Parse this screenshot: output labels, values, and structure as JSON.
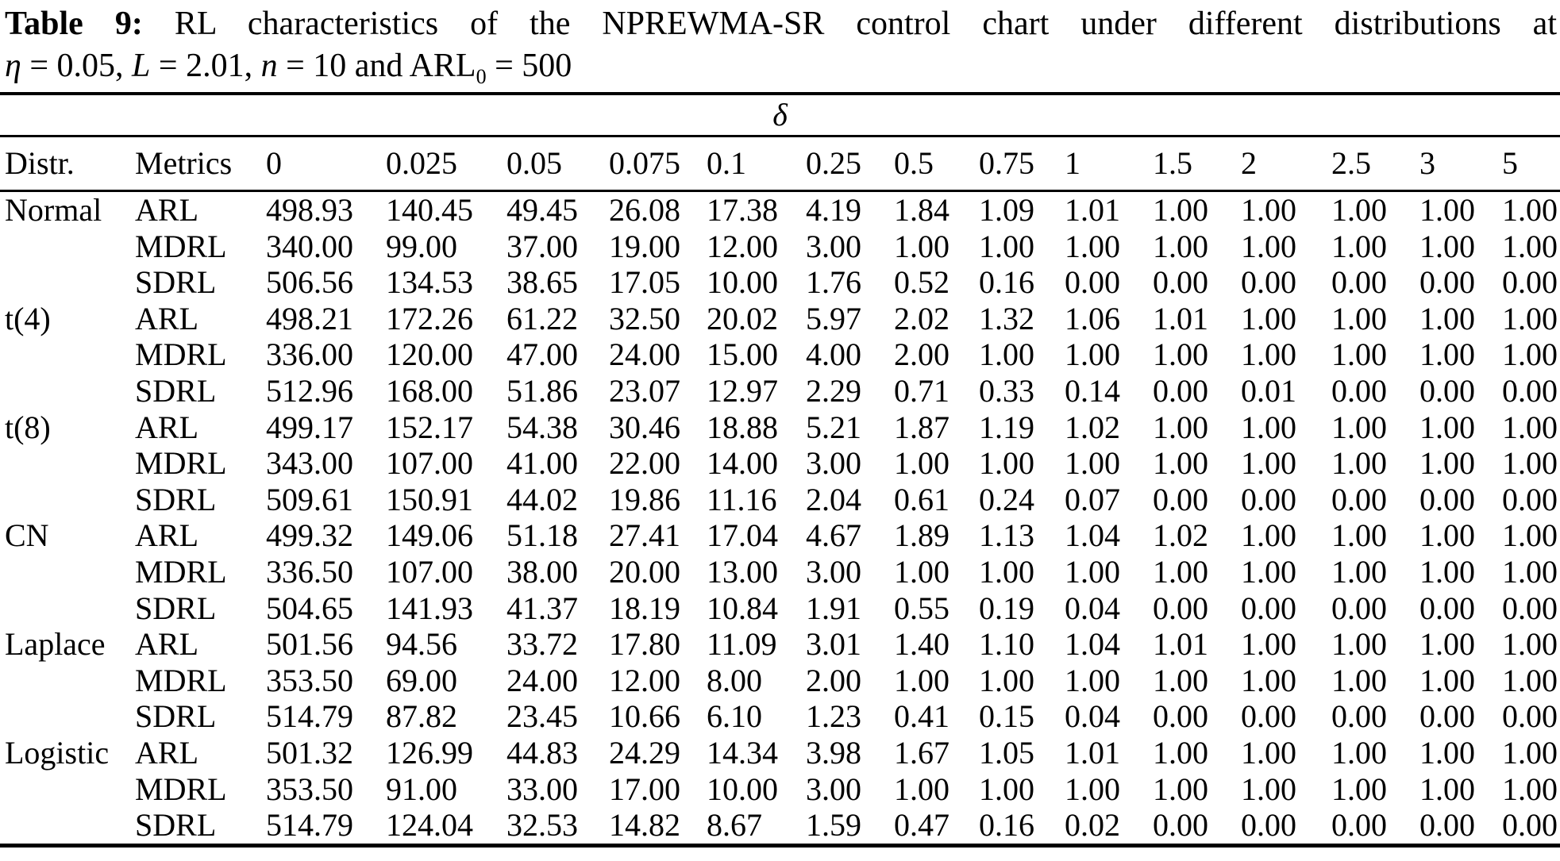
{
  "caption": {
    "bold": "Table 9:",
    "line1_rest": "RL characteristics of the NPREWMA-SR control chart under different distributions at",
    "params": [
      {
        "text": "η",
        "style": "italic"
      },
      {
        "text": " = 0.05, ",
        "style": "normal"
      },
      {
        "text": "L",
        "style": "italic"
      },
      {
        "text": " = 2.01, ",
        "style": "normal"
      },
      {
        "text": "n",
        "style": "italic"
      },
      {
        "text": " = 10 and ARL",
        "style": "normal"
      },
      {
        "text": "0",
        "style": "sub"
      },
      {
        "text": " = 500",
        "style": "normal"
      }
    ]
  },
  "table": {
    "span_header": "δ",
    "col_headers": [
      "Distr.",
      "Metrics",
      "0",
      "0.025",
      "0.05",
      "0.075",
      "0.1",
      "0.25",
      "0.5",
      "0.75",
      "1",
      "1.5",
      "2",
      "2.5",
      "3",
      "5"
    ],
    "groups": [
      {
        "distr": "Normal",
        "rows": [
          {
            "metric": "ARL",
            "values": [
              "498.93",
              "140.45",
              "49.45",
              "26.08",
              "17.38",
              "4.19",
              "1.84",
              "1.09",
              "1.01",
              "1.00",
              "1.00",
              "1.00",
              "1.00",
              "1.00"
            ]
          },
          {
            "metric": "MDRL",
            "values": [
              "340.00",
              "99.00",
              "37.00",
              "19.00",
              "12.00",
              "3.00",
              "1.00",
              "1.00",
              "1.00",
              "1.00",
              "1.00",
              "1.00",
              "1.00",
              "1.00"
            ]
          },
          {
            "metric": "SDRL",
            "values": [
              "506.56",
              "134.53",
              "38.65",
              "17.05",
              "10.00",
              "1.76",
              "0.52",
              "0.16",
              "0.00",
              "0.00",
              "0.00",
              "0.00",
              "0.00",
              "0.00"
            ]
          }
        ]
      },
      {
        "distr": "t(4)",
        "rows": [
          {
            "metric": "ARL",
            "values": [
              "498.21",
              "172.26",
              "61.22",
              "32.50",
              "20.02",
              "5.97",
              "2.02",
              "1.32",
              "1.06",
              "1.01",
              "1.00",
              "1.00",
              "1.00",
              "1.00"
            ]
          },
          {
            "metric": "MDRL",
            "values": [
              "336.00",
              "120.00",
              "47.00",
              "24.00",
              "15.00",
              "4.00",
              "2.00",
              "1.00",
              "1.00",
              "1.00",
              "1.00",
              "1.00",
              "1.00",
              "1.00"
            ]
          },
          {
            "metric": "SDRL",
            "values": [
              "512.96",
              "168.00",
              "51.86",
              "23.07",
              "12.97",
              "2.29",
              "0.71",
              "0.33",
              "0.14",
              "0.00",
              "0.01",
              "0.00",
              "0.00",
              "0.00"
            ]
          }
        ]
      },
      {
        "distr": "t(8)",
        "rows": [
          {
            "metric": "ARL",
            "values": [
              "499.17",
              "152.17",
              "54.38",
              "30.46",
              "18.88",
              "5.21",
              "1.87",
              "1.19",
              "1.02",
              "1.00",
              "1.00",
              "1.00",
              "1.00",
              "1.00"
            ]
          },
          {
            "metric": "MDRL",
            "values": [
              "343.00",
              "107.00",
              "41.00",
              "22.00",
              "14.00",
              "3.00",
              "1.00",
              "1.00",
              "1.00",
              "1.00",
              "1.00",
              "1.00",
              "1.00",
              "1.00"
            ]
          },
          {
            "metric": "SDRL",
            "values": [
              "509.61",
              "150.91",
              "44.02",
              "19.86",
              "11.16",
              "2.04",
              "0.61",
              "0.24",
              "0.07",
              "0.00",
              "0.00",
              "0.00",
              "0.00",
              "0.00"
            ]
          }
        ]
      },
      {
        "distr": "CN",
        "rows": [
          {
            "metric": "ARL",
            "values": [
              "499.32",
              "149.06",
              "51.18",
              "27.41",
              "17.04",
              "4.67",
              "1.89",
              "1.13",
              "1.04",
              "1.02",
              "1.00",
              "1.00",
              "1.00",
              "1.00"
            ]
          },
          {
            "metric": "MDRL",
            "values": [
              "336.50",
              "107.00",
              "38.00",
              "20.00",
              "13.00",
              "3.00",
              "1.00",
              "1.00",
              "1.00",
              "1.00",
              "1.00",
              "1.00",
              "1.00",
              "1.00"
            ]
          },
          {
            "metric": "SDRL",
            "values": [
              "504.65",
              "141.93",
              "41.37",
              "18.19",
              "10.84",
              "1.91",
              "0.55",
              "0.19",
              "0.04",
              "0.00",
              "0.00",
              "0.00",
              "0.00",
              "0.00"
            ]
          }
        ]
      },
      {
        "distr": "Laplace",
        "rows": [
          {
            "metric": "ARL",
            "values": [
              "501.56",
              "94.56",
              "33.72",
              "17.80",
              "11.09",
              "3.01",
              "1.40",
              "1.10",
              "1.04",
              "1.01",
              "1.00",
              "1.00",
              "1.00",
              "1.00"
            ]
          },
          {
            "metric": "MDRL",
            "values": [
              "353.50",
              "69.00",
              "24.00",
              "12.00",
              "8.00",
              "2.00",
              "1.00",
              "1.00",
              "1.00",
              "1.00",
              "1.00",
              "1.00",
              "1.00",
              "1.00"
            ]
          },
          {
            "metric": "SDRL",
            "values": [
              "514.79",
              "87.82",
              "23.45",
              "10.66",
              "6.10",
              "1.23",
              "0.41",
              "0.15",
              "0.04",
              "0.00",
              "0.00",
              "0.00",
              "0.00",
              "0.00"
            ]
          }
        ]
      },
      {
        "distr": "Logistic",
        "rows": [
          {
            "metric": "ARL",
            "values": [
              "501.32",
              "126.99",
              "44.83",
              "24.29",
              "14.34",
              "3.98",
              "1.67",
              "1.05",
              "1.01",
              "1.00",
              "1.00",
              "1.00",
              "1.00",
              "1.00"
            ]
          },
          {
            "metric": "MDRL",
            "values": [
              "353.50",
              "91.00",
              "33.00",
              "17.00",
              "10.00",
              "3.00",
              "1.00",
              "1.00",
              "1.00",
              "1.00",
              "1.00",
              "1.00",
              "1.00",
              "1.00"
            ]
          },
          {
            "metric": "SDRL",
            "values": [
              "514.79",
              "124.04",
              "32.53",
              "14.82",
              "8.67",
              "1.59",
              "0.47",
              "0.16",
              "0.02",
              "0.00",
              "0.00",
              "0.00",
              "0.00",
              "0.00"
            ]
          }
        ]
      }
    ]
  }
}
